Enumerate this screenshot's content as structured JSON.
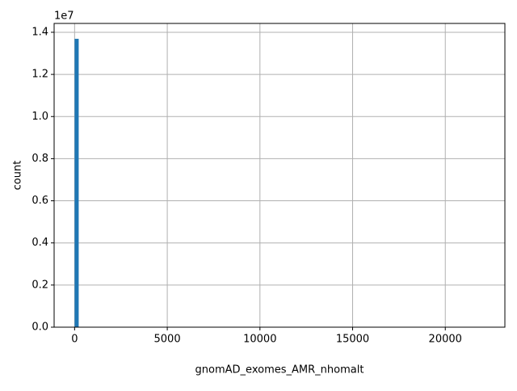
{
  "chart_data": {
    "type": "histogram",
    "x_label": "gnomAD_exomes_AMR_nhomalt",
    "y_label": "count",
    "y_offset_text": "1e7",
    "bins": [
      0,
      221,
      22110
    ],
    "values": [
      13690000,
      0
    ],
    "color": "#1f77b4",
    "xlim": [
      -1105,
      23215
    ],
    "xticks": [
      0,
      5000,
      10000,
      15000,
      20000
    ],
    "ylim": [
      0,
      14420000
    ],
    "yticks": [
      {
        "value": 0,
        "label": "0.0"
      },
      {
        "value": 2000000,
        "label": "0.2"
      },
      {
        "value": 4000000,
        "label": "0.4"
      },
      {
        "value": 6000000,
        "label": "0.6"
      },
      {
        "value": 8000000,
        "label": "0.8"
      },
      {
        "value": 10000000,
        "label": "1.0"
      },
      {
        "value": 12000000,
        "label": "1.2"
      },
      {
        "value": 14000000,
        "label": "1.4"
      }
    ],
    "grid": true
  }
}
